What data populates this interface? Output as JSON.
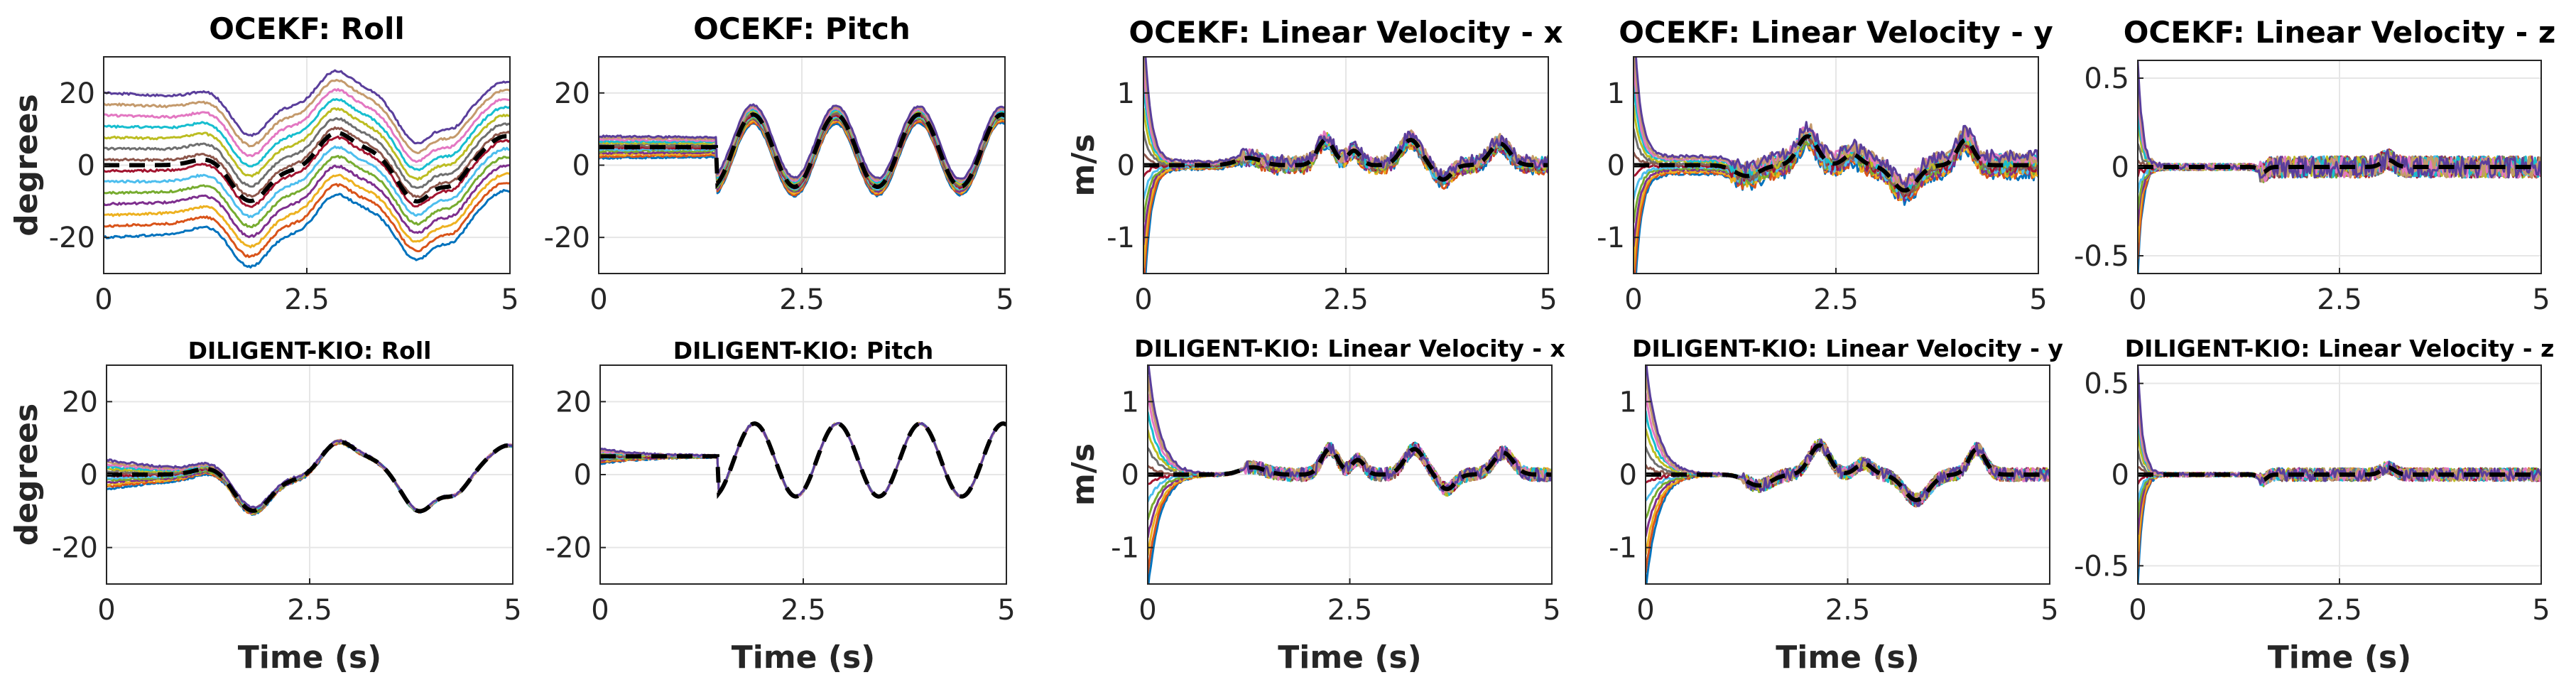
{
  "chart_data": [
    {
      "type": "line",
      "title": "OCEKF: Roll",
      "ylabel": "degrees",
      "xlabel": "",
      "xlim": [
        0,
        5
      ],
      "ylim": [
        -30,
        30
      ],
      "xticks": [
        "0",
        "2.5",
        "5"
      ],
      "yticks": [
        "-20",
        "0",
        "20"
      ],
      "kind": "roll",
      "ground_truth": "black dashed",
      "num_runs": 14
    },
    {
      "type": "line",
      "title": "OCEKF: Pitch",
      "ylabel": "",
      "xlabel": "",
      "xlim": [
        0,
        5
      ],
      "ylim": [
        -30,
        30
      ],
      "xticks": [
        "0",
        "2.5",
        "5"
      ],
      "yticks": [
        "-20",
        "0",
        "20"
      ],
      "kind": "pitch",
      "ground_truth": "black dashed",
      "num_runs": 14
    },
    {
      "type": "line",
      "title": "OCEKF: Linear Velocity - x",
      "ylabel": "m/s",
      "xlabel": "",
      "xlim": [
        0,
        5
      ],
      "ylim": [
        -1.5,
        1.5
      ],
      "xticks": [
        "0",
        "2.5",
        "5"
      ],
      "yticks": [
        "-1",
        "0",
        "1"
      ],
      "kind": "vx",
      "ground_truth": "black dashed",
      "num_runs": 14
    },
    {
      "type": "line",
      "title": "OCEKF: Linear Velocity - y",
      "ylabel": "",
      "xlabel": "",
      "xlim": [
        0,
        5
      ],
      "ylim": [
        -1.5,
        1.5
      ],
      "xticks": [
        "0",
        "2.5",
        "5"
      ],
      "yticks": [
        "-1",
        "0",
        "1"
      ],
      "kind": "vy",
      "ground_truth": "black dashed",
      "num_runs": 14
    },
    {
      "type": "line",
      "title": "OCEKF: Linear Velocity - z",
      "ylabel": "",
      "xlabel": "",
      "xlim": [
        0,
        5
      ],
      "ylim": [
        -0.6,
        0.6
      ],
      "xticks": [
        "0",
        "2.5",
        "5"
      ],
      "yticks": [
        "-0.5",
        "0",
        "0.5"
      ],
      "kind": "vz",
      "ground_truth": "black dashed",
      "num_runs": 14
    },
    {
      "type": "line",
      "title": "DILIGENT-KIO: Roll",
      "ylabel": "degrees",
      "xlabel": "Time (s)",
      "xlim": [
        0,
        5
      ],
      "ylim": [
        -30,
        30
      ],
      "xticks": [
        "0",
        "2.5",
        "5"
      ],
      "yticks": [
        "-20",
        "0",
        "20"
      ],
      "kind": "roll",
      "ground_truth": "black dashed",
      "num_runs": 14
    },
    {
      "type": "line",
      "title": "DILIGENT-KIO: Pitch",
      "ylabel": "",
      "xlabel": "Time (s)",
      "xlim": [
        0,
        5
      ],
      "ylim": [
        -30,
        30
      ],
      "xticks": [
        "0",
        "2.5",
        "5"
      ],
      "yticks": [
        "-20",
        "0",
        "20"
      ],
      "kind": "pitch",
      "ground_truth": "black dashed",
      "num_runs": 14
    },
    {
      "type": "line",
      "title": "DILIGENT-KIO: Linear Velocity - x",
      "ylabel": "m/s",
      "xlabel": "Time (s)",
      "xlim": [
        0,
        5
      ],
      "ylim": [
        -1.5,
        1.5
      ],
      "xticks": [
        "0",
        "2.5",
        "5"
      ],
      "yticks": [
        "-1",
        "0",
        "1"
      ],
      "kind": "vx",
      "ground_truth": "black dashed",
      "num_runs": 14
    },
    {
      "type": "line",
      "title": "DILIGENT-KIO: Linear Velocity - y",
      "ylabel": "",
      "xlabel": "Time (s)",
      "xlim": [
        0,
        5
      ],
      "ylim": [
        -1.5,
        1.5
      ],
      "xticks": [
        "0",
        "2.5",
        "5"
      ],
      "yticks": [
        "-1",
        "0",
        "1"
      ],
      "kind": "vy",
      "ground_truth": "black dashed",
      "num_runs": 14
    },
    {
      "type": "line",
      "title": "DILIGENT-KIO: Linear Velocity - z",
      "ylabel": "",
      "xlabel": "Time (s)",
      "xlim": [
        0,
        5
      ],
      "ylim": [
        -0.6,
        0.6
      ],
      "xticks": [
        "0",
        "2.5",
        "5"
      ],
      "yticks": [
        "-0.5",
        "0",
        "0.5"
      ],
      "kind": "vz",
      "ground_truth": "black dashed",
      "num_runs": 14
    }
  ],
  "colors": [
    "#0072bd",
    "#d95319",
    "#edb120",
    "#7e2f8e",
    "#77ac30",
    "#4dbeee",
    "#a2142f",
    "#8c564b",
    "#6f6f6f",
    "#bcbd22",
    "#17becf",
    "#e377c2",
    "#c49a6c",
    "#5a3e9b"
  ],
  "ground_truth_color": "#000000",
  "grid_color": "#e6e6e6"
}
